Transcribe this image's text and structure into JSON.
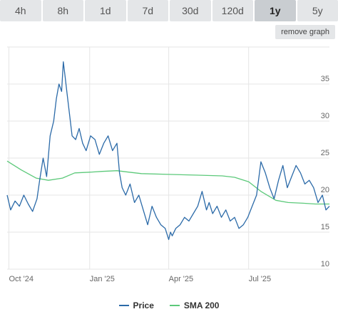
{
  "tabs": [
    {
      "label": "4h"
    },
    {
      "label": "8h"
    },
    {
      "label": "1d"
    },
    {
      "label": "7d"
    },
    {
      "label": "30d"
    },
    {
      "label": "120d"
    },
    {
      "label": "1y"
    },
    {
      "label": "5y"
    }
  ],
  "active_tab": "1y",
  "remove_button": "remove graph",
  "colors": {
    "price": "#2b6aa8",
    "sma": "#5cc97a",
    "grid": "#e6e6e6"
  },
  "chart_data": {
    "type": "line",
    "x_ticks": [
      "Oct '24",
      "Jan '25",
      "Apr '25",
      "Jul '25"
    ],
    "x_tick_dates": [
      "2024-10-01",
      "2025-01-01",
      "2025-04-01",
      "2025-07-01"
    ],
    "x_range": [
      "2024-09-29",
      "2025-10-01"
    ],
    "ylim": [
      10,
      40
    ],
    "y_ticks": [
      10,
      15,
      20,
      25,
      30,
      35
    ],
    "y_axis_side": "right",
    "grid": true,
    "legend_position": "bottom",
    "series": [
      {
        "name": "Price",
        "color": "#2b6aa8",
        "x": [
          "2024-09-29",
          "2024-10-03",
          "2024-10-08",
          "2024-10-13",
          "2024-10-18",
          "2024-10-23",
          "2024-10-28",
          "2024-11-02",
          "2024-11-05",
          "2024-11-09",
          "2024-11-13",
          "2024-11-17",
          "2024-11-21",
          "2024-11-24",
          "2024-11-27",
          "2024-11-30",
          "2024-12-02",
          "2024-12-04",
          "2024-12-06",
          "2024-12-09",
          "2024-12-12",
          "2024-12-16",
          "2024-12-20",
          "2024-12-24",
          "2024-12-28",
          "2025-01-02",
          "2025-01-07",
          "2025-01-12",
          "2025-01-17",
          "2025-01-22",
          "2025-01-27",
          "2025-02-01",
          "2025-02-04",
          "2025-02-07",
          "2025-02-11",
          "2025-02-16",
          "2025-02-21",
          "2025-02-26",
          "2025-03-03",
          "2025-03-08",
          "2025-03-13",
          "2025-03-18",
          "2025-03-23",
          "2025-03-28",
          "2025-04-01",
          "2025-04-03",
          "2025-04-05",
          "2025-04-09",
          "2025-04-14",
          "2025-04-19",
          "2025-04-24",
          "2025-04-29",
          "2025-05-04",
          "2025-05-09",
          "2025-05-14",
          "2025-05-17",
          "2025-05-21",
          "2025-05-26",
          "2025-05-31",
          "2025-06-05",
          "2025-06-10",
          "2025-06-15",
          "2025-06-20",
          "2025-06-25",
          "2025-06-30",
          "2025-07-05",
          "2025-07-10",
          "2025-07-15",
          "2025-07-20",
          "2025-07-25",
          "2025-07-30",
          "2025-08-04",
          "2025-08-09",
          "2025-08-14",
          "2025-08-19",
          "2025-08-24",
          "2025-08-29",
          "2025-09-03",
          "2025-09-08",
          "2025-09-13",
          "2025-09-18",
          "2025-09-23",
          "2025-09-27",
          "2025-10-01"
        ],
        "values": [
          20.0,
          18.0,
          19.2,
          18.5,
          20.0,
          18.8,
          17.8,
          19.5,
          22.0,
          25.0,
          22.5,
          28.0,
          30.0,
          33.0,
          35.0,
          34.0,
          38.0,
          36.0,
          34.0,
          31.0,
          28.0,
          27.5,
          29.0,
          27.0,
          26.0,
          28.0,
          27.5,
          25.5,
          27.0,
          28.0,
          26.0,
          27.0,
          23.0,
          21.0,
          20.0,
          21.5,
          19.0,
          20.0,
          18.0,
          16.0,
          18.5,
          17.0,
          16.0,
          15.5,
          14.0,
          15.0,
          14.5,
          15.5,
          16.0,
          17.0,
          16.5,
          17.5,
          18.5,
          20.5,
          18.0,
          19.0,
          17.5,
          18.5,
          17.0,
          18.0,
          16.5,
          17.0,
          15.5,
          16.0,
          17.0,
          18.5,
          20.0,
          24.5,
          23.0,
          21.0,
          19.5,
          22.0,
          24.0,
          21.0,
          22.5,
          24.0,
          23.0,
          21.5,
          22.0,
          21.0,
          19.0,
          20.0,
          18.0,
          18.5
        ]
      },
      {
        "name": "SMA 200",
        "color": "#5cc97a",
        "x": [
          "2024-09-29",
          "2024-10-15",
          "2024-11-01",
          "2024-11-15",
          "2024-12-01",
          "2024-12-15",
          "2025-01-01",
          "2025-01-15",
          "2025-02-01",
          "2025-02-15",
          "2025-03-01",
          "2025-04-01",
          "2025-05-01",
          "2025-06-01",
          "2025-06-15",
          "2025-07-01",
          "2025-07-15",
          "2025-08-01",
          "2025-08-15",
          "2025-09-01",
          "2025-09-15",
          "2025-10-01"
        ],
        "values": [
          24.6,
          23.4,
          22.3,
          22.0,
          22.3,
          23.0,
          23.1,
          23.2,
          23.3,
          23.1,
          22.9,
          22.8,
          22.7,
          22.6,
          22.4,
          21.8,
          20.5,
          19.3,
          19.0,
          18.9,
          18.8,
          18.8
        ]
      }
    ]
  }
}
